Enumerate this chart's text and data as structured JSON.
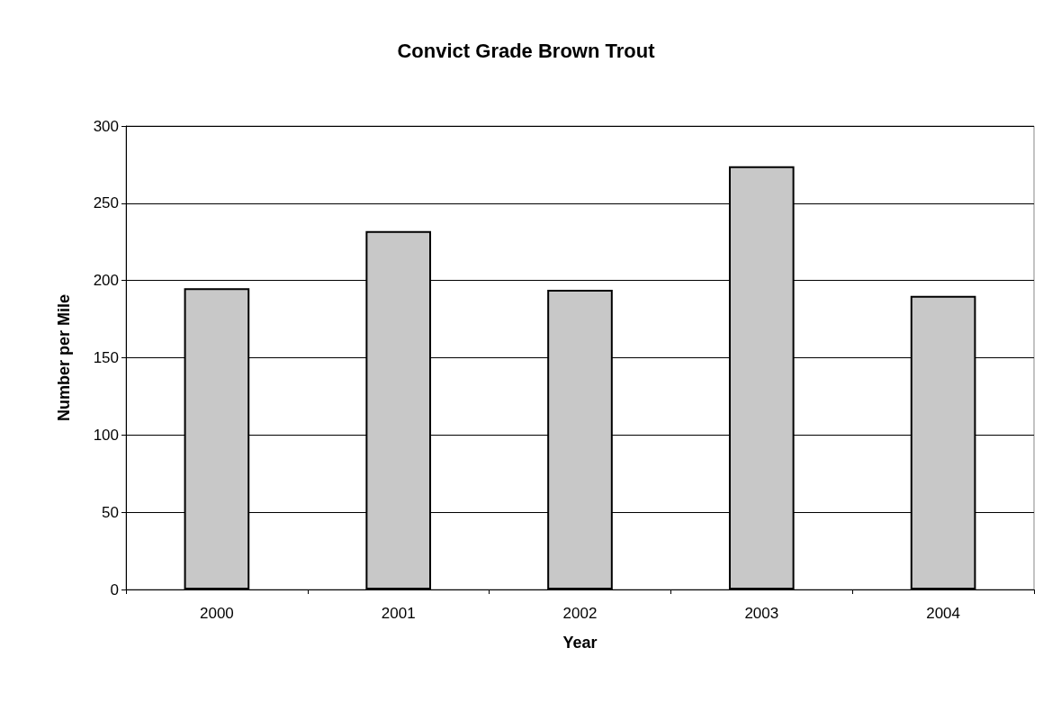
{
  "chart_data": {
    "type": "bar",
    "title": "Convict Grade Brown Trout",
    "xlabel": "Year",
    "ylabel": "Number per Mile",
    "categories": [
      "2000",
      "2001",
      "2002",
      "2003",
      "2004"
    ],
    "values": [
      195,
      232,
      194,
      274,
      190
    ],
    "color": "#c8c8c8",
    "ylim": [
      0,
      300
    ],
    "yticks": [
      0,
      50,
      100,
      150,
      200,
      250,
      300
    ],
    "grid": "y"
  }
}
